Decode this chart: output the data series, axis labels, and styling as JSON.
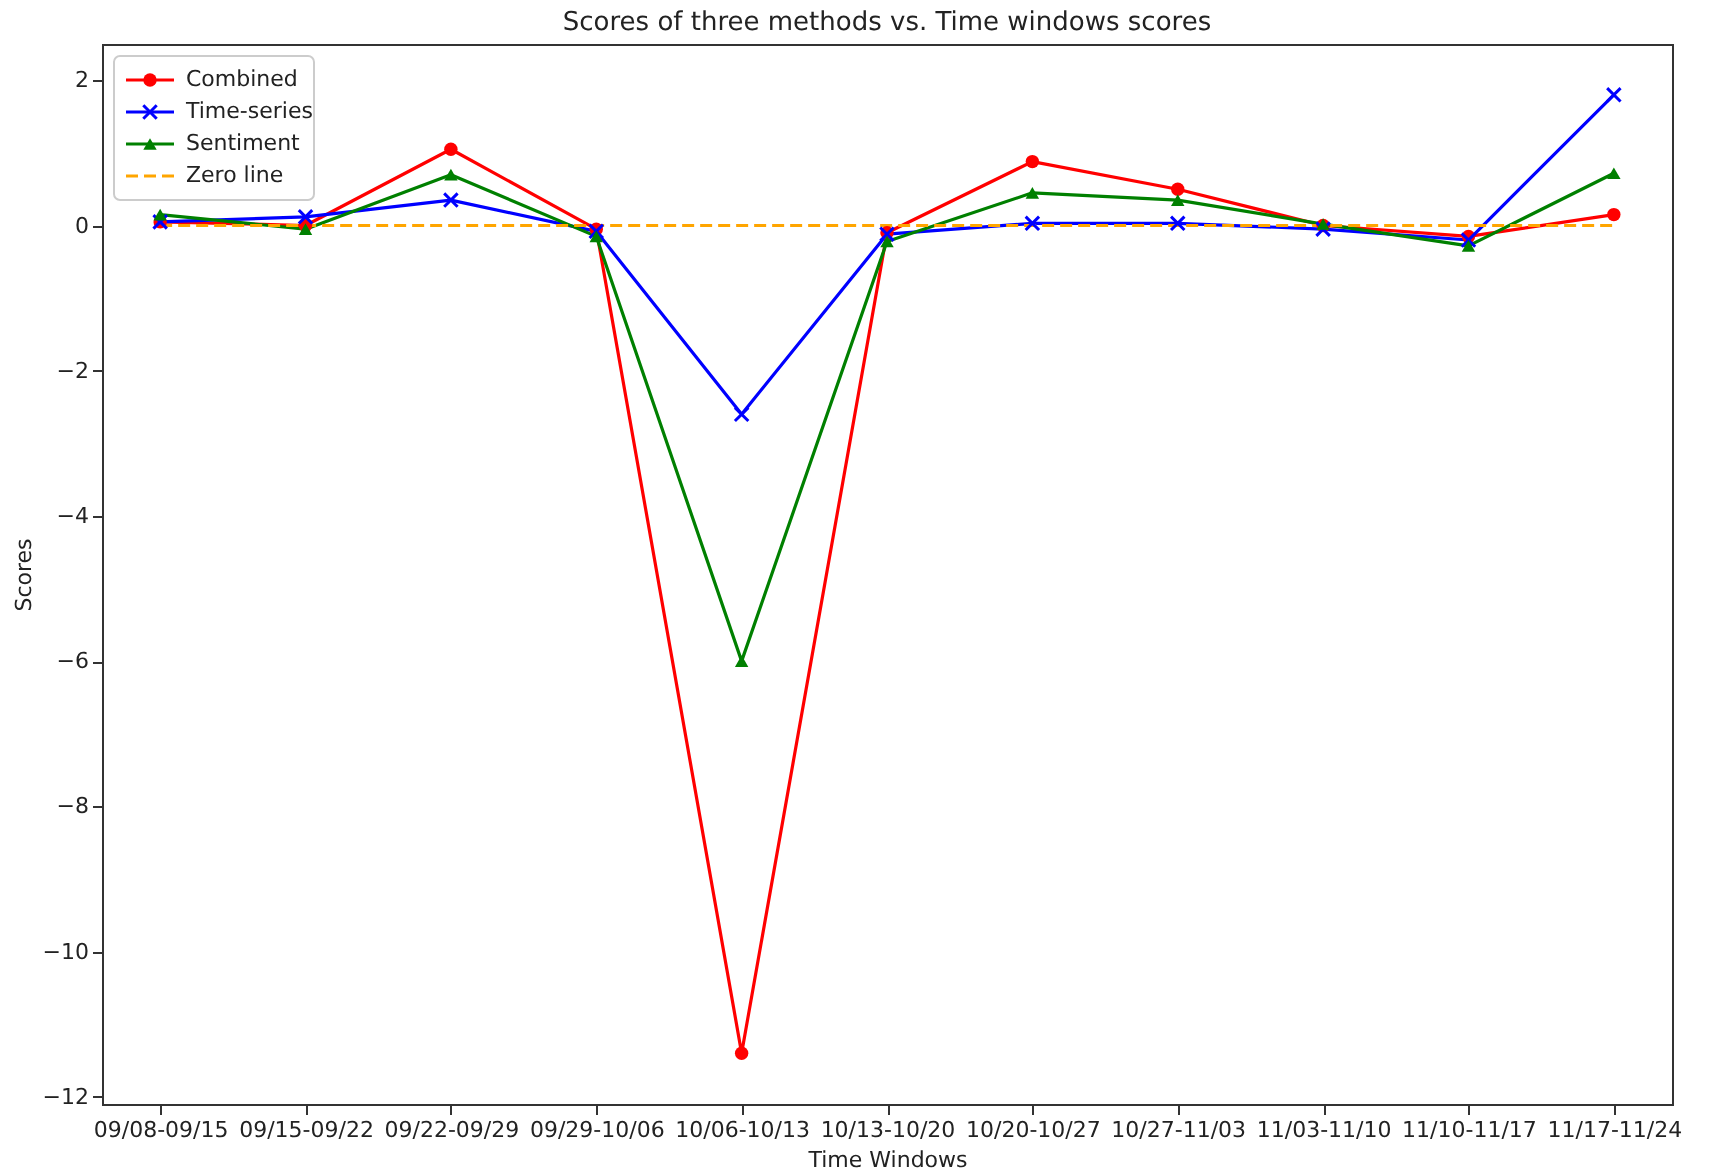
{
  "chart_data": {
    "type": "line",
    "title": "Scores of three methods vs. Time windows scores",
    "xlabel": "Time Windows",
    "ylabel": "Scores",
    "categories": [
      "09/08-09/15",
      "09/15-09/22",
      "09/22-09/29",
      "09/29-10/06",
      "10/06-10/13",
      "10/13-10/20",
      "10/20-10/27",
      "10/27-11/03",
      "11/03-11/10",
      "11/10-11/17",
      "11/17-11/24"
    ],
    "series": [
      {
        "name": "Combined",
        "color": "#ff0000",
        "marker": "circle",
        "line_style": "solid",
        "values": [
          0.05,
          0.0,
          1.05,
          -0.05,
          -11.4,
          -0.1,
          0.88,
          0.5,
          0.0,
          -0.15,
          0.15
        ]
      },
      {
        "name": "Time-series",
        "color": "#0000ff",
        "marker": "cross",
        "line_style": "solid",
        "values": [
          0.05,
          0.12,
          0.35,
          -0.08,
          -2.6,
          -0.12,
          0.03,
          0.03,
          -0.05,
          -0.2,
          1.8
        ]
      },
      {
        "name": "Sentiment",
        "color": "#008000",
        "marker": "triangle",
        "line_style": "solid",
        "values": [
          0.15,
          -0.05,
          0.7,
          -0.15,
          -6.0,
          -0.22,
          0.45,
          0.35,
          0.02,
          -0.28,
          0.72
        ]
      },
      {
        "name": "Zero line",
        "color": "#ffa500",
        "marker": "none",
        "line_style": "dashed",
        "values": [
          0,
          0,
          0,
          0,
          0,
          0,
          0,
          0,
          0,
          0,
          0
        ]
      }
    ],
    "ylim": [
      -12.1,
      2.5
    ],
    "yticks": [
      {
        "value": -12,
        "label": "−12"
      },
      {
        "value": -10,
        "label": "−10"
      },
      {
        "value": -8,
        "label": "−8"
      },
      {
        "value": -6,
        "label": "−6"
      },
      {
        "value": -4,
        "label": "−4"
      },
      {
        "value": -2,
        "label": "−2"
      },
      0,
      2
    ],
    "grid": false,
    "legend": "top left"
  }
}
